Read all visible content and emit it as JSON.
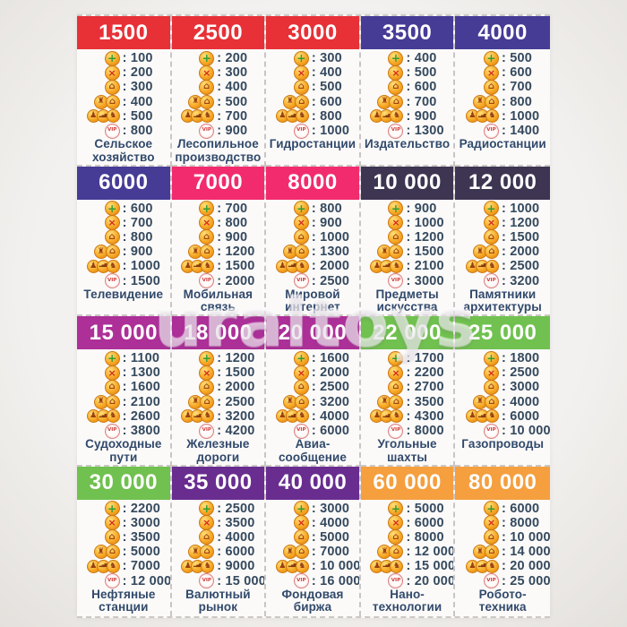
{
  "page": {
    "watermark": "uraltoys",
    "background": "#f3f1ef",
    "sheet_background": "#fbfaf9"
  },
  "palette": {
    "red": "#E73137",
    "indigo": "#463C96",
    "pink": "#F22B6F",
    "dark_navy": "#3D3552",
    "magenta": "#AD2F98",
    "green": "#70C14F",
    "purple": "#692D90",
    "orange": "#F59F3E",
    "value_text": "#35495E",
    "label_text": "#31496B",
    "coin_orange": "#F6A623",
    "vip_red": "#D13A3A"
  },
  "icons": {
    "rows": [
      "coin-plus",
      "coin-x",
      "coin-building",
      "coin-pair",
      "coin-triple",
      "coin-vip"
    ]
  },
  "cards": [
    {
      "price": "1500",
      "color": "red",
      "values": [
        "100",
        "200",
        "300",
        "400",
        "500",
        "800"
      ],
      "label": "Сельское\nхозяйство"
    },
    {
      "price": "2500",
      "color": "red",
      "values": [
        "200",
        "300",
        "400",
        "500",
        "700",
        "900"
      ],
      "label": "Лесопильное\nпроизводство"
    },
    {
      "price": "3000",
      "color": "red",
      "values": [
        "300",
        "400",
        "500",
        "600",
        "800",
        "1000"
      ],
      "label": "Гидростанции"
    },
    {
      "price": "3500",
      "color": "indigo",
      "values": [
        "400",
        "500",
        "600",
        "700",
        "900",
        "1300"
      ],
      "label": "Издательство"
    },
    {
      "price": "4000",
      "color": "indigo",
      "values": [
        "500",
        "600",
        "700",
        "800",
        "1000",
        "1400"
      ],
      "label": "Радиостанции"
    },
    {
      "price": "6000",
      "color": "indigo",
      "values": [
        "600",
        "700",
        "800",
        "900",
        "1000",
        "1500"
      ],
      "label": "Телевидение"
    },
    {
      "price": "7000",
      "color": "pink",
      "values": [
        "700",
        "800",
        "900",
        "1200",
        "1500",
        "2000"
      ],
      "label": "Мобильная\nсвязь"
    },
    {
      "price": "8000",
      "color": "pink",
      "values": [
        "800",
        "900",
        "1000",
        "1300",
        "2000",
        "2500"
      ],
      "label": "Мировой\nинтернет"
    },
    {
      "price": "10 000",
      "color": "dark_navy",
      "values": [
        "900",
        "1000",
        "1200",
        "1500",
        "2100",
        "3000"
      ],
      "label": "Предметы\nискусства"
    },
    {
      "price": "12 000",
      "color": "dark_navy",
      "values": [
        "1000",
        "1200",
        "1500",
        "2000",
        "2500",
        "3200"
      ],
      "label": "Памятники\nархитектуры"
    },
    {
      "price": "15 000",
      "color": "magenta",
      "values": [
        "1100",
        "1300",
        "1600",
        "2100",
        "2600",
        "3800"
      ],
      "label": "Судоходные\nпути"
    },
    {
      "price": "18 000",
      "color": "magenta",
      "values": [
        "1200",
        "1500",
        "2000",
        "2500",
        "3200",
        "4200"
      ],
      "label": "Железные\nдороги"
    },
    {
      "price": "20 000",
      "color": "magenta",
      "values": [
        "1600",
        "2000",
        "2500",
        "3200",
        "4000",
        "6000"
      ],
      "label": "Авиа-\nсообщение"
    },
    {
      "price": "22 000",
      "color": "green",
      "values": [
        "1700",
        "2200",
        "2700",
        "3500",
        "4300",
        "8000"
      ],
      "label": "Угольные\nшахты"
    },
    {
      "price": "25 000",
      "color": "green",
      "values": [
        "1800",
        "2500",
        "3000",
        "4000",
        "6000",
        "10 000"
      ],
      "label": "Газопроводы"
    },
    {
      "price": "30 000",
      "color": "green",
      "values": [
        "2200",
        "3000",
        "3500",
        "5000",
        "7000",
        "12 000"
      ],
      "label": "Нефтяные\nстанции"
    },
    {
      "price": "35 000",
      "color": "purple",
      "values": [
        "2500",
        "3500",
        "4000",
        "6000",
        "9000",
        "15 000"
      ],
      "label": "Валютный\nрынок"
    },
    {
      "price": "40 000",
      "color": "purple",
      "values": [
        "3000",
        "4000",
        "5000",
        "7000",
        "10 000",
        "16 000"
      ],
      "label": "Фондовая\nбиржа"
    },
    {
      "price": "60 000",
      "color": "orange",
      "values": [
        "5000",
        "6000",
        "8000",
        "12 000",
        "15 000",
        "20 000"
      ],
      "label": "Нано-\nтехнологии"
    },
    {
      "price": "80 000",
      "color": "orange",
      "values": [
        "6000",
        "8000",
        "10 000",
        "14 000",
        "20 000",
        "25 000"
      ],
      "label": "Робото-\nтехника"
    }
  ]
}
